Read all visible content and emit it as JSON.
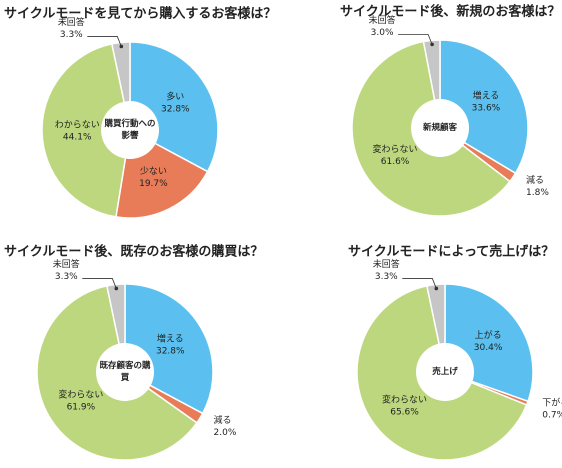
{
  "chart_data": [
    {
      "type": "pie",
      "title": "サイクルモードを見てから購入するお客様は？",
      "center_label": "購買行動への影響",
      "categories": [
        "多い",
        "少ない",
        "わからない",
        "未回答"
      ],
      "values": [
        32.8,
        19.7,
        44.1,
        3.3
      ],
      "value_labels": [
        "32.8%",
        "19.7%",
        "44.1%",
        "3.3%"
      ],
      "colors": [
        "#5bc0ef",
        "#e87c58",
        "#bdd77e",
        "#c6c6c6"
      ]
    },
    {
      "type": "pie",
      "title": "サイクルモード後、新規のお客様は？",
      "center_label": "新規顧客",
      "categories": [
        "増える",
        "減る",
        "変わらない",
        "未回答"
      ],
      "values": [
        33.6,
        1.8,
        61.6,
        3.0
      ],
      "value_labels": [
        "33.6%",
        "1.8%",
        "61.6%",
        "3.0%"
      ],
      "colors": [
        "#5bc0ef",
        "#e87c58",
        "#bdd77e",
        "#c6c6c6"
      ]
    },
    {
      "type": "pie",
      "title": "サイクルモード後、既存のお客様の購買は？",
      "center_label": "既存顧客の購買",
      "categories": [
        "増える",
        "減る",
        "変わらない",
        "未回答"
      ],
      "values": [
        32.8,
        2.0,
        61.9,
        3.3
      ],
      "value_labels": [
        "32.8%",
        "2.0%",
        "61.9%",
        "3.3%"
      ],
      "colors": [
        "#5bc0ef",
        "#e87c58",
        "#bdd77e",
        "#c6c6c6"
      ]
    },
    {
      "type": "pie",
      "title": "サイクルモードによって売上げは？",
      "center_label": "売上げ",
      "categories": [
        "上がる",
        "下がる",
        "変わらない",
        "未回答"
      ],
      "values": [
        30.4,
        0.7,
        65.6,
        3.3
      ],
      "value_labels": [
        "30.4%",
        "0.7%",
        "65.6%",
        "3.3%"
      ],
      "colors": [
        "#5bc0ef",
        "#e87c58",
        "#bdd77e",
        "#c6c6c6"
      ]
    }
  ]
}
